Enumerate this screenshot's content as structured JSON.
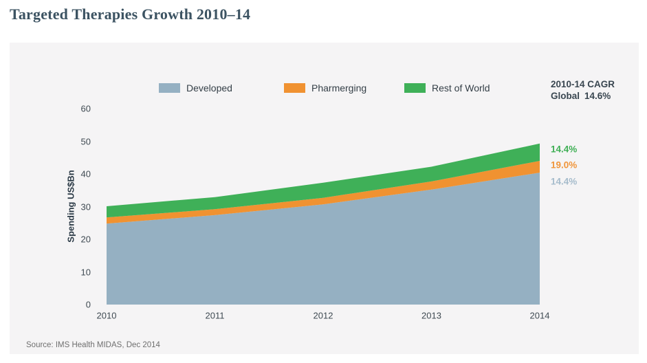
{
  "page": {
    "title": "Targeted Therapies Growth 2010–14"
  },
  "source_note": "Source: IMS Health MIDAS, Dec 2014",
  "colors": {
    "page_bg": "#ffffff",
    "panel_bg": "#f5f4f5",
    "title_text": "#3c5362",
    "tick_text": "#3f4a52",
    "legend_text": "#333e46",
    "cagr_text": "#394650",
    "source_text": "#6f6f6f"
  },
  "chart_data": {
    "type": "area",
    "stacked": true,
    "title": "Targeted Therapies Growth 2010–14",
    "x": [
      2010,
      2011,
      2012,
      2013,
      2014
    ],
    "ylabel": "Spending US$Bn",
    "xlabel": "",
    "ylim": [
      0,
      60
    ],
    "yticks": [
      0,
      10,
      20,
      30,
      40,
      50,
      60
    ],
    "grid": false,
    "legend_position": "top",
    "series": [
      {
        "name": "Developed",
        "color": "#95b0c2",
        "values": [
          24.8,
          27.4,
          30.7,
          35.2,
          40.4
        ],
        "cagr": "14.4%"
      },
      {
        "name": "Pharmerging",
        "color": "#f09231",
        "values": [
          1.9,
          1.8,
          2.0,
          2.5,
          3.6
        ],
        "cagr": "19.0%"
      },
      {
        "name": "Rest of World",
        "color": "#3fb058",
        "values": [
          3.4,
          3.7,
          4.6,
          4.5,
          5.3
        ],
        "cagr": "14.4%"
      }
    ],
    "totals": [
      30.1,
      32.9,
      37.3,
      42.2,
      49.3
    ],
    "annotations": {
      "cagr_header": "2010-14 CAGR",
      "global_label": "Global",
      "global_value": "14.6%",
      "right_labels": [
        {
          "text": "14.4%",
          "color": "#3faf55",
          "series": "Rest of World"
        },
        {
          "text": "19.0%",
          "color": "#f0953a",
          "series": "Pharmerging"
        },
        {
          "text": "14.4%",
          "color": "#a6bccc",
          "series": "Developed"
        }
      ]
    }
  }
}
